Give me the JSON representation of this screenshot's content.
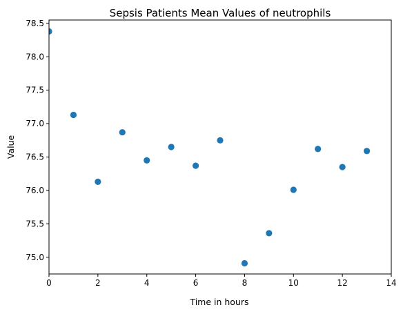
{
  "chart_data": {
    "type": "scatter",
    "title": "Sepsis Patients Mean Values of neutrophils",
    "xlabel": "Time in hours",
    "ylabel": "Value",
    "xlim": [
      0,
      14
    ],
    "ylim": [
      74.75,
      78.55
    ],
    "xticks": [
      0,
      2,
      4,
      6,
      8,
      10,
      12,
      14
    ],
    "xtick_labels": [
      "0",
      "2",
      "4",
      "6",
      "8",
      "10",
      "12",
      "14"
    ],
    "yticks": [
      75.0,
      75.5,
      76.0,
      76.5,
      77.0,
      77.5,
      78.0,
      78.5
    ],
    "ytick_labels": [
      "75.0",
      "75.5",
      "76.0",
      "76.5",
      "77.0",
      "77.5",
      "78.0",
      "78.5"
    ],
    "grid": false,
    "series": [
      {
        "x": [
          0,
          1,
          2,
          3,
          4,
          5,
          6,
          7,
          8,
          9,
          10,
          11,
          12,
          13
        ],
        "y": [
          78.38,
          77.13,
          76.13,
          76.87,
          76.45,
          76.65,
          76.37,
          76.75,
          74.91,
          75.36,
          76.01,
          76.62,
          76.35,
          76.59
        ],
        "color": "#1f77b4"
      }
    ]
  }
}
